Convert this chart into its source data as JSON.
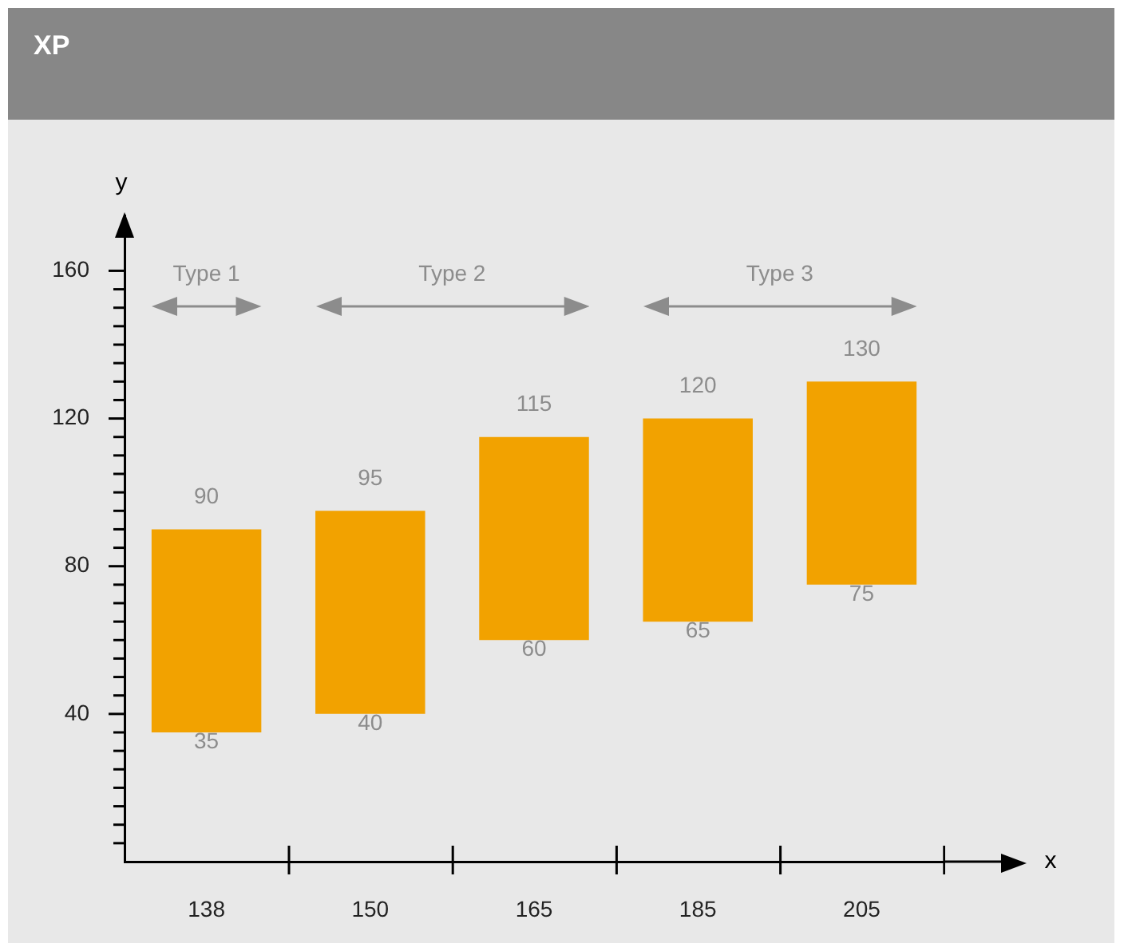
{
  "chart_data": {
    "type": "bar",
    "title": "XP",
    "xlabel": "x",
    "ylabel": "y",
    "categories": [
      "138",
      "150",
      "165",
      "185",
      "205"
    ],
    "base": [
      35,
      40,
      60,
      65,
      75
    ],
    "values": [
      55,
      55,
      55,
      55,
      55
    ],
    "value_labels": [
      "90",
      "95",
      "115",
      "120",
      "130"
    ],
    "color": "#f2a200",
    "ylim": [
      0,
      175
    ],
    "yticks": [
      {
        "value": 5,
        "label": null
      },
      {
        "value": 10,
        "label": null
      },
      {
        "value": 15,
        "label": null
      },
      {
        "value": 20,
        "label": null
      },
      {
        "value": 25,
        "label": null
      },
      {
        "value": 30,
        "label": null
      },
      {
        "value": 35,
        "label": null
      },
      40,
      {
        "value": 45,
        "label": null
      },
      {
        "value": 50,
        "label": null
      },
      {
        "value": 55,
        "label": null
      },
      {
        "value": 60,
        "label": null
      },
      {
        "value": 65,
        "label": null
      },
      {
        "value": 70,
        "label": null
      },
      {
        "value": 75,
        "label": null
      },
      80,
      {
        "value": 85,
        "label": null
      },
      {
        "value": 90,
        "label": null
      },
      {
        "value": 95,
        "label": null
      },
      {
        "value": 100,
        "label": null
      },
      {
        "value": 105,
        "label": null
      },
      {
        "value": 110,
        "label": null
      },
      {
        "value": 115,
        "label": null
      },
      120,
      {
        "value": 125,
        "label": null
      },
      {
        "value": 130,
        "label": null
      },
      {
        "value": 135,
        "label": null
      },
      {
        "value": 140,
        "label": null
      },
      {
        "value": 145,
        "label": null
      },
      {
        "value": 150,
        "label": null
      },
      {
        "value": 155,
        "label": null
      },
      160
    ],
    "annotations": [
      "Type 1",
      "Type 2",
      "Type 3",
      {
        "text": "35",
        "x": "138",
        "y": 35
      },
      {
        "text": "40",
        "x": "150",
        "y": 40
      },
      {
        "text": "60",
        "x": "165",
        "y": 60
      },
      {
        "text": "65",
        "x": "185",
        "y": 65
      },
      {
        "text": "75",
        "x": "205",
        "y": 75
      }
    ],
    "legend": false
  }
}
